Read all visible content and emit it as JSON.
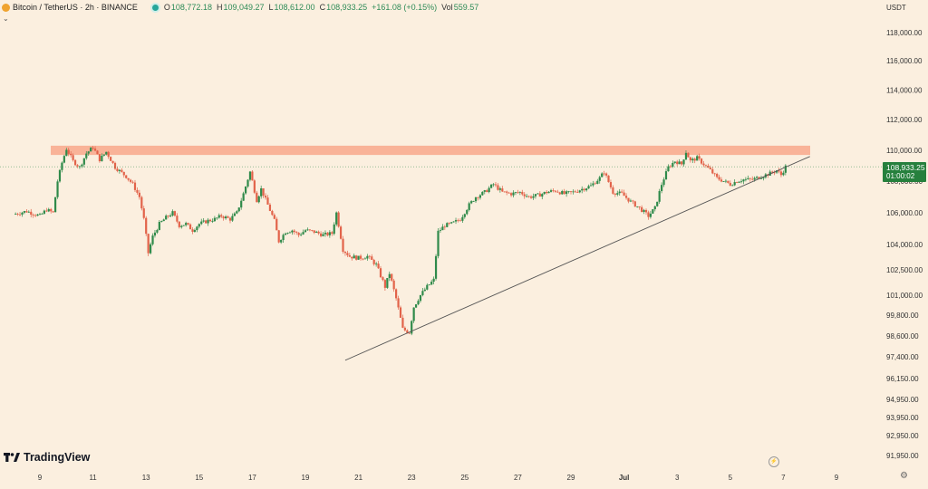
{
  "legend": {
    "symbol": "Bitcoin / TetherUS · 2h · BINANCE",
    "open_label": "O",
    "open": "108,772.18",
    "high_label": "H",
    "high": "109,049.27",
    "low_label": "L",
    "low": "108,612.00",
    "close_label": "C",
    "close": "108,933.25",
    "change": "+161.08 (+0.15%)",
    "vol_label": "Vol",
    "vol": "559.57"
  },
  "currency": "USDT",
  "brand": "TradingView",
  "price_tag": {
    "price": "108,933.25",
    "countdown": "01:00:02"
  },
  "colors": {
    "up": "#2f8a4a",
    "down": "#e2634a",
    "resistance": "#f8a88c",
    "background": "#fbefdf",
    "price_tag": "#26803d"
  },
  "chart_data": {
    "type": "candlestick",
    "x_tick_labels": [
      "9",
      "11",
      "13",
      "15",
      "17",
      "19",
      "21",
      "23",
      "25",
      "27",
      "29",
      "Jul",
      "3",
      "5",
      "7",
      "9"
    ],
    "y_tick_labels": [
      118000,
      116000,
      114000,
      112000,
      110000,
      108000,
      106000,
      104000,
      102500,
      101000,
      99800,
      98600,
      97400,
      96150,
      94950,
      93950,
      92950,
      91950
    ],
    "y_tick_text": [
      "118,000.00",
      "116,000.00",
      "114,000.00",
      "112,000.00",
      "110,000.00",
      "108,000.00",
      "106,000.00",
      "104,000.00",
      "102,500.00",
      "101,000.00",
      "99,800.00",
      "98,600.00",
      "97,400.00",
      "96,150.00",
      "94,950.00",
      "93,950.00",
      "92,950.00",
      "91,950.00"
    ],
    "scale": "log",
    "resistance_zone": [
      109700,
      110300
    ],
    "trendline": {
      "from": {
        "x": "Jun 20 12:00",
        "y": 97200
      },
      "to": {
        "x": "Jul 8 00:00",
        "y": 109600
      }
    },
    "current_price": 108933.25,
    "close_path": [
      {
        "x": "Jun 8 00:00",
        "y": 105900
      },
      {
        "x": "Jun 8 12:00",
        "y": 106100
      },
      {
        "x": "Jun 9 00:00",
        "y": 105800
      },
      {
        "x": "Jun 9 06:00",
        "y": 106200
      },
      {
        "x": "Jun 9 12:00",
        "y": 106000
      },
      {
        "x": "Jun 9 16:00",
        "y": 108000
      },
      {
        "x": "Jun 9 20:00",
        "y": 109200
      },
      {
        "x": "Jun 10 00:00",
        "y": 110100
      },
      {
        "x": "Jun 10 06:00",
        "y": 109300
      },
      {
        "x": "Jun 10 12:00",
        "y": 108900
      },
      {
        "x": "Jun 10 18:00",
        "y": 109800
      },
      {
        "x": "Jun 11 00:00",
        "y": 110200
      },
      {
        "x": "Jun 11 06:00",
        "y": 109400
      },
      {
        "x": "Jun 11 12:00",
        "y": 109900
      },
      {
        "x": "Jun 11 20:00",
        "y": 108900
      },
      {
        "x": "Jun 12 06:00",
        "y": 108300
      },
      {
        "x": "Jun 12 12:00",
        "y": 107800
      },
      {
        "x": "Jun 12 18:00",
        "y": 107000
      },
      {
        "x": "Jun 12 22:00",
        "y": 105600
      },
      {
        "x": "Jun 13 02:00",
        "y": 103500
      },
      {
        "x": "Jun 13 06:00",
        "y": 104500
      },
      {
        "x": "Jun 13 12:00",
        "y": 105300
      },
      {
        "x": "Jun 13 18:00",
        "y": 105700
      },
      {
        "x": "Jun 14 00:00",
        "y": 106000
      },
      {
        "x": "Jun 14 06:00",
        "y": 105200
      },
      {
        "x": "Jun 14 12:00",
        "y": 105300
      },
      {
        "x": "Jun 14 18:00",
        "y": 104900
      },
      {
        "x": "Jun 15 00:00",
        "y": 105300
      },
      {
        "x": "Jun 15 08:00",
        "y": 105500
      },
      {
        "x": "Jun 15 14:00",
        "y": 105600
      },
      {
        "x": "Jun 15 20:00",
        "y": 105800
      },
      {
        "x": "Jun 16 04:00",
        "y": 105600
      },
      {
        "x": "Jun 16 10:00",
        "y": 106000
      },
      {
        "x": "Jun 16 16:00",
        "y": 107200
      },
      {
        "x": "Jun 16 22:00",
        "y": 108600
      },
      {
        "x": "Jun 17 04:00",
        "y": 106800
      },
      {
        "x": "Jun 17 08:00",
        "y": 107500
      },
      {
        "x": "Jun 17 14:00",
        "y": 106500
      },
      {
        "x": "Jun 17 20:00",
        "y": 105500
      },
      {
        "x": "Jun 18 00:00",
        "y": 104200
      },
      {
        "x": "Jun 18 06:00",
        "y": 104800
      },
      {
        "x": "Jun 18 12:00",
        "y": 104900
      },
      {
        "x": "Jun 18 18:00",
        "y": 104600
      },
      {
        "x": "Jun 19 00:00",
        "y": 104900
      },
      {
        "x": "Jun 19 08:00",
        "y": 104800
      },
      {
        "x": "Jun 19 16:00",
        "y": 104600
      },
      {
        "x": "Jun 20 00:00",
        "y": 104700
      },
      {
        "x": "Jun 20 04:00",
        "y": 106000
      },
      {
        "x": "Jun 20 10:00",
        "y": 103700
      },
      {
        "x": "Jun 20 16:00",
        "y": 103300
      },
      {
        "x": "Jun 21 00:00",
        "y": 103200
      },
      {
        "x": "Jun 21 08:00",
        "y": 103300
      },
      {
        "x": "Jun 21 16:00",
        "y": 102800
      },
      {
        "x": "Jun 22 00:00",
        "y": 101500
      },
      {
        "x": "Jun 22 04:00",
        "y": 102300
      },
      {
        "x": "Jun 22 10:00",
        "y": 100800
      },
      {
        "x": "Jun 22 16:00",
        "y": 99000
      },
      {
        "x": "Jun 22 22:00",
        "y": 98800
      },
      {
        "x": "Jun 23 02:00",
        "y": 100300
      },
      {
        "x": "Jun 23 08:00",
        "y": 101000
      },
      {
        "x": "Jun 23 14:00",
        "y": 101500
      },
      {
        "x": "Jun 23 20:00",
        "y": 101900
      },
      {
        "x": "Jun 24 00:00",
        "y": 104800
      },
      {
        "x": "Jun 24 06:00",
        "y": 105200
      },
      {
        "x": "Jun 24 12:00",
        "y": 105300
      },
      {
        "x": "Jun 24 20:00",
        "y": 105600
      },
      {
        "x": "Jun 25 04:00",
        "y": 106500
      },
      {
        "x": "Jun 25 10:00",
        "y": 107000
      },
      {
        "x": "Jun 25 18:00",
        "y": 107300
      },
      {
        "x": "Jun 26 02:00",
        "y": 107800
      },
      {
        "x": "Jun 26 10:00",
        "y": 107300
      },
      {
        "x": "Jun 26 18:00",
        "y": 107200
      },
      {
        "x": "Jun 27 02:00",
        "y": 107300
      },
      {
        "x": "Jun 27 10:00",
        "y": 107000
      },
      {
        "x": "Jun 27 18:00",
        "y": 107100
      },
      {
        "x": "Jun 28 02:00",
        "y": 107300
      },
      {
        "x": "Jun 28 10:00",
        "y": 107400
      },
      {
        "x": "Jun 28 18:00",
        "y": 107200
      },
      {
        "x": "Jun 29 02:00",
        "y": 107300
      },
      {
        "x": "Jun 29 10:00",
        "y": 107500
      },
      {
        "x": "Jun 29 18:00",
        "y": 107700
      },
      {
        "x": "Jun 30 02:00",
        "y": 108200
      },
      {
        "x": "Jun 30 06:00",
        "y": 108600
      },
      {
        "x": "Jun 30 14:00",
        "y": 107300
      },
      {
        "x": "Jun 30 22:00",
        "y": 107200
      },
      {
        "x": "Jul 1 06:00",
        "y": 106700
      },
      {
        "x": "Jul 1 14:00",
        "y": 106300
      },
      {
        "x": "Jul 1 22:00",
        "y": 105800
      },
      {
        "x": "Jul 2 04:00",
        "y": 106300
      },
      {
        "x": "Jul 2 10:00",
        "y": 107800
      },
      {
        "x": "Jul 2 16:00",
        "y": 108900
      },
      {
        "x": "Jul 2 22:00",
        "y": 109300
      },
      {
        "x": "Jul 3 04:00",
        "y": 109100
      },
      {
        "x": "Jul 3 08:00",
        "y": 109900
      },
      {
        "x": "Jul 3 12:00",
        "y": 109300
      },
      {
        "x": "Jul 3 18:00",
        "y": 109500
      },
      {
        "x": "Jul 4 00:00",
        "y": 109100
      },
      {
        "x": "Jul 4 06:00",
        "y": 108700
      },
      {
        "x": "Jul 4 12:00",
        "y": 108200
      },
      {
        "x": "Jul 4 18:00",
        "y": 108000
      },
      {
        "x": "Jul 5 00:00",
        "y": 107800
      },
      {
        "x": "Jul 5 06:00",
        "y": 108000
      },
      {
        "x": "Jul 5 12:00",
        "y": 108100
      },
      {
        "x": "Jul 5 20:00",
        "y": 108100
      },
      {
        "x": "Jul 6 04:00",
        "y": 108300
      },
      {
        "x": "Jul 6 12:00",
        "y": 108500
      },
      {
        "x": "Jul 6 18:00",
        "y": 108700
      },
      {
        "x": "Jul 6 22:00",
        "y": 108400
      },
      {
        "x": "Jul 7 02:00",
        "y": 108933
      }
    ]
  }
}
